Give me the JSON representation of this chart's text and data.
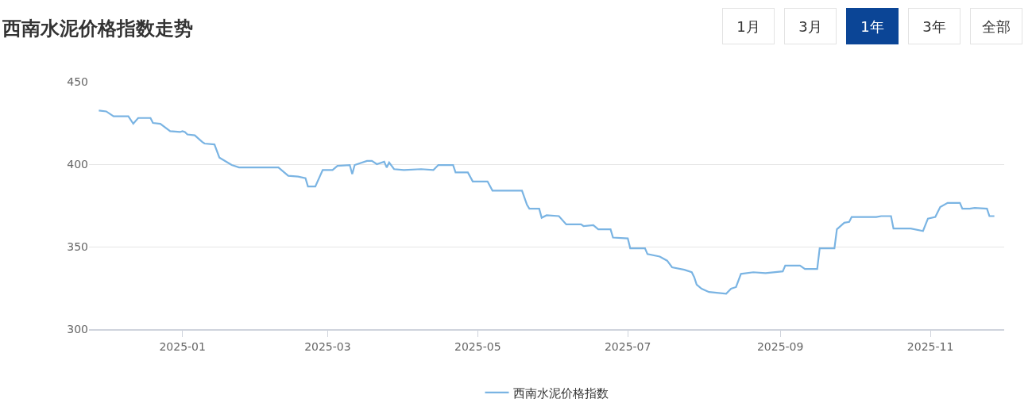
{
  "chart_data": {
    "type": "line",
    "title": "西南水泥价格指数走势",
    "annotations": [
      "1月",
      "3月",
      "1年",
      "3年",
      "全部"
    ],
    "x": [
      "2024-11-28",
      "2024-12-01",
      "2024-12-04",
      "2024-12-10",
      "2024-12-12",
      "2024-12-14",
      "2024-12-19",
      "2024-12-20",
      "2024-12-23",
      "2024-12-27",
      "2024-12-31",
      "2025-01-01",
      "2025-01-02",
      "2025-01-03",
      "2025-01-06",
      "2025-01-09",
      "2025-01-10",
      "2025-01-14",
      "2025-01-16",
      "2025-01-21",
      "2025-01-24",
      "2025-02-09",
      "2025-02-13",
      "2025-02-17",
      "2025-02-20",
      "2025-02-21",
      "2025-02-24",
      "2025-02-27",
      "2025-03-03",
      "2025-03-05",
      "2025-03-10",
      "2025-03-11",
      "2025-03-12",
      "2025-03-17",
      "2025-03-19",
      "2025-03-21",
      "2025-03-24",
      "2025-03-25",
      "2025-03-26",
      "2025-03-28",
      "2025-04-01",
      "2025-04-08",
      "2025-04-13",
      "2025-04-15",
      "2025-04-21",
      "2025-04-22",
      "2025-04-27",
      "2025-04-29",
      "2025-05-05",
      "2025-05-07",
      "2025-05-19",
      "2025-05-21",
      "2025-05-22",
      "2025-05-26",
      "2025-05-27",
      "2025-05-29",
      "2025-06-03",
      "2025-06-06",
      "2025-06-12",
      "2025-06-13",
      "2025-06-17",
      "2025-06-19",
      "2025-06-24",
      "2025-06-25",
      "2025-07-01",
      "2025-07-02",
      "2025-07-08",
      "2025-07-09",
      "2025-07-14",
      "2025-07-17",
      "2025-07-19",
      "2025-07-24",
      "2025-07-27",
      "2025-07-28",
      "2025-07-29",
      "2025-07-31",
      "2025-08-03",
      "2025-08-10",
      "2025-08-12",
      "2025-08-14",
      "2025-08-16",
      "2025-08-21",
      "2025-08-26",
      "2025-09-02",
      "2025-09-03",
      "2025-09-09",
      "2025-09-11",
      "2025-09-16",
      "2025-09-17",
      "2025-09-23",
      "2025-09-24",
      "2025-09-27",
      "2025-09-29",
      "2025-09-30",
      "2025-10-10",
      "2025-10-12",
      "2025-10-16",
      "2025-10-17",
      "2025-10-24",
      "2025-10-29",
      "2025-10-31",
      "2025-11-03",
      "2025-11-05",
      "2025-11-08",
      "2025-11-13",
      "2025-11-14",
      "2025-11-17",
      "2025-11-19",
      "2025-11-24",
      "2025-11-25",
      "2025-11-27"
    ],
    "series": [
      {
        "name": "西南水泥价格指数",
        "color": "#7ab4e3",
        "values": [
          432.5,
          432,
          429,
          429,
          424.5,
          428,
          428,
          425,
          424.5,
          420,
          419.5,
          420,
          419.5,
          418,
          417.5,
          413.5,
          412.5,
          412,
          404,
          399.5,
          398,
          398,
          393,
          392.5,
          391.5,
          386.5,
          386.5,
          396.5,
          396.5,
          399,
          399.5,
          394,
          399.5,
          402,
          402,
          400,
          401.5,
          398,
          401,
          397,
          396.5,
          397,
          396.5,
          399.5,
          399.5,
          395,
          395,
          389.5,
          389.5,
          384,
          384,
          375.5,
          373,
          373,
          367.5,
          369,
          368.5,
          363.5,
          363.5,
          362.5,
          363,
          360.5,
          360.5,
          355.5,
          355,
          349,
          349,
          345.5,
          344,
          341.5,
          337.5,
          336,
          334.5,
          331.5,
          327,
          324.5,
          322.5,
          321.5,
          324.5,
          325.5,
          333.5,
          334.5,
          334,
          335,
          338.5,
          338.5,
          336.5,
          336.5,
          349,
          349,
          360.5,
          364.5,
          365,
          368,
          368,
          368.5,
          368.5,
          361,
          361,
          359.5,
          367,
          368,
          374,
          376.5,
          376.5,
          373,
          373,
          373.5,
          373,
          368.5,
          368.5
        ]
      }
    ],
    "xlim": [
      "2024-11-24",
      "2025-12-01"
    ],
    "xticks": [
      "2025-01",
      "2025-03",
      "2025-05",
      "2025-07",
      "2025-09",
      "2025-11"
    ],
    "ylim": [
      300,
      450
    ],
    "yticks": [
      300,
      350,
      400,
      450
    ],
    "grid": "y",
    "legend": "bottom",
    "marker": "none",
    "line_style": "solid"
  }
}
